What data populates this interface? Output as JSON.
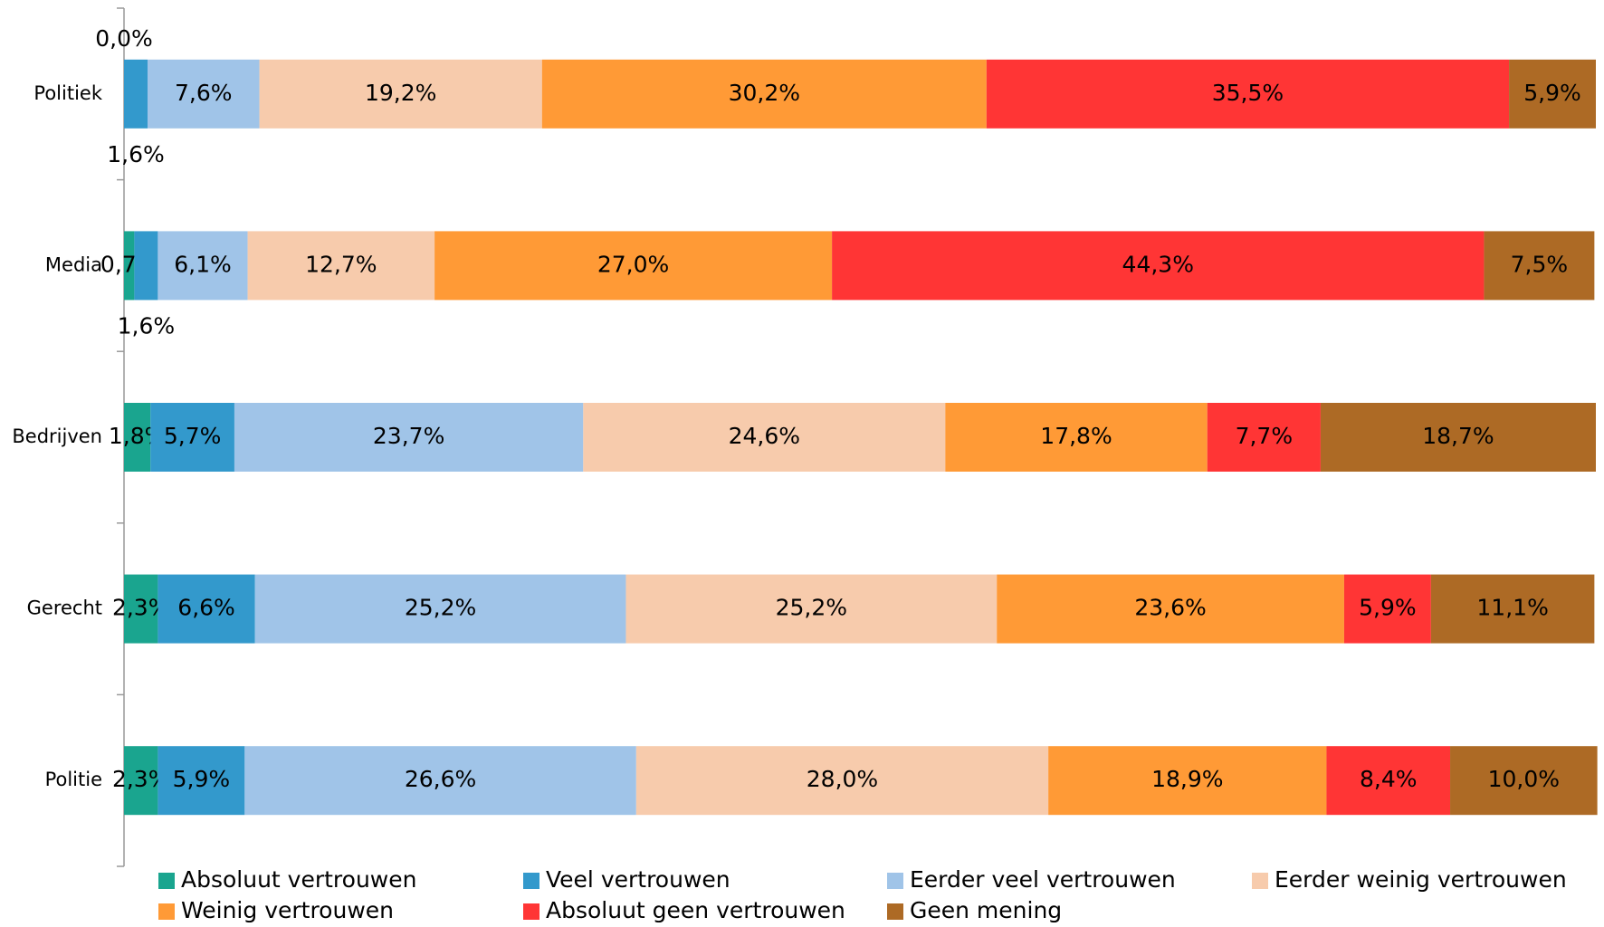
{
  "chart_data": {
    "type": "stacked_barh",
    "categories": [
      "Politiek",
      "Media",
      "Bedrijven",
      "Gerecht",
      "Politie"
    ],
    "xlim": [
      0,
      100
    ],
    "series": [
      {
        "name": "Absoluut vertrouwen",
        "color": "#1aa58f",
        "values": [
          0.0,
          0.7,
          1.8,
          2.3,
          2.3
        ],
        "value_labels": [
          "0,0%",
          "0,7%",
          "1,8%",
          "2,3%",
          "2,3%"
        ]
      },
      {
        "name": "Veel vertrouwen",
        "color": "#3399cc",
        "values": [
          1.6,
          1.6,
          5.7,
          6.6,
          5.9
        ],
        "value_labels": [
          "1,6%",
          "1,6%",
          "5,7%",
          "6,6%",
          "5,9%"
        ]
      },
      {
        "name": "Eerder veel vertrouwen",
        "color": "#a0c4e8",
        "values": [
          7.6,
          6.1,
          23.7,
          25.2,
          26.6
        ],
        "value_labels": [
          "7,6%",
          "6,1%",
          "23,7%",
          "25,2%",
          "26,6%"
        ]
      },
      {
        "name": "Eerder weinig vertrouwen",
        "color": "#f7cbac",
        "values": [
          19.2,
          12.7,
          24.6,
          25.2,
          28.0
        ],
        "value_labels": [
          "19,2%",
          "12,7%",
          "24,6%",
          "25,2%",
          "28,0%"
        ]
      },
      {
        "name": "Weinig vertrouwen",
        "color": "#ff9a36",
        "values": [
          30.2,
          27.0,
          17.8,
          23.6,
          18.9
        ],
        "value_labels": [
          "30,2%",
          "27,0%",
          "17,8%",
          "23,6%",
          "18,9%"
        ]
      },
      {
        "name": "Absoluut geen vertrouwen",
        "color": "#ff3535",
        "values": [
          35.5,
          44.3,
          7.7,
          5.9,
          8.4
        ],
        "value_labels": [
          "35,5%",
          "44,3%",
          "7,7%",
          "5,9%",
          "8,4%"
        ]
      },
      {
        "name": "Geen mening",
        "color": "#ad6a25",
        "values": [
          5.9,
          7.5,
          18.7,
          11.1,
          10.0
        ],
        "value_labels": [
          "5,9%",
          "7,5%",
          "18,7%",
          "11,1%",
          "10,0%"
        ]
      }
    ]
  }
}
